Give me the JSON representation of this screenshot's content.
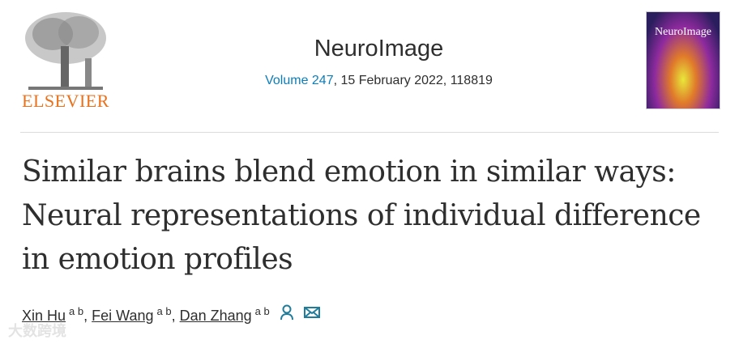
{
  "publisher": {
    "logo_text": "ELSEVIER"
  },
  "journal": {
    "name": "NeuroImage",
    "volume_label": "Volume 247",
    "details": ", 15 February 2022, 118819",
    "cover_title": "NeuroImage"
  },
  "article": {
    "title": "Similar brains blend emotion in similar ways: Neural representations of individual difference in emotion profiles"
  },
  "authors": [
    {
      "name": "Xin Hu",
      "affil": "a b",
      "sep": ","
    },
    {
      "name": "Fei Wang",
      "affil": "a b",
      "sep": ","
    },
    {
      "name": "Dan Zhang",
      "affil": "a b",
      "sep": ""
    }
  ],
  "icons": {
    "person": "person-icon",
    "email": "envelope-icon"
  },
  "colors": {
    "accent": "#0c7dbb",
    "elsevier_orange": "#e9711c",
    "icon": "#1f7d9b"
  },
  "watermark": "大数跨境"
}
